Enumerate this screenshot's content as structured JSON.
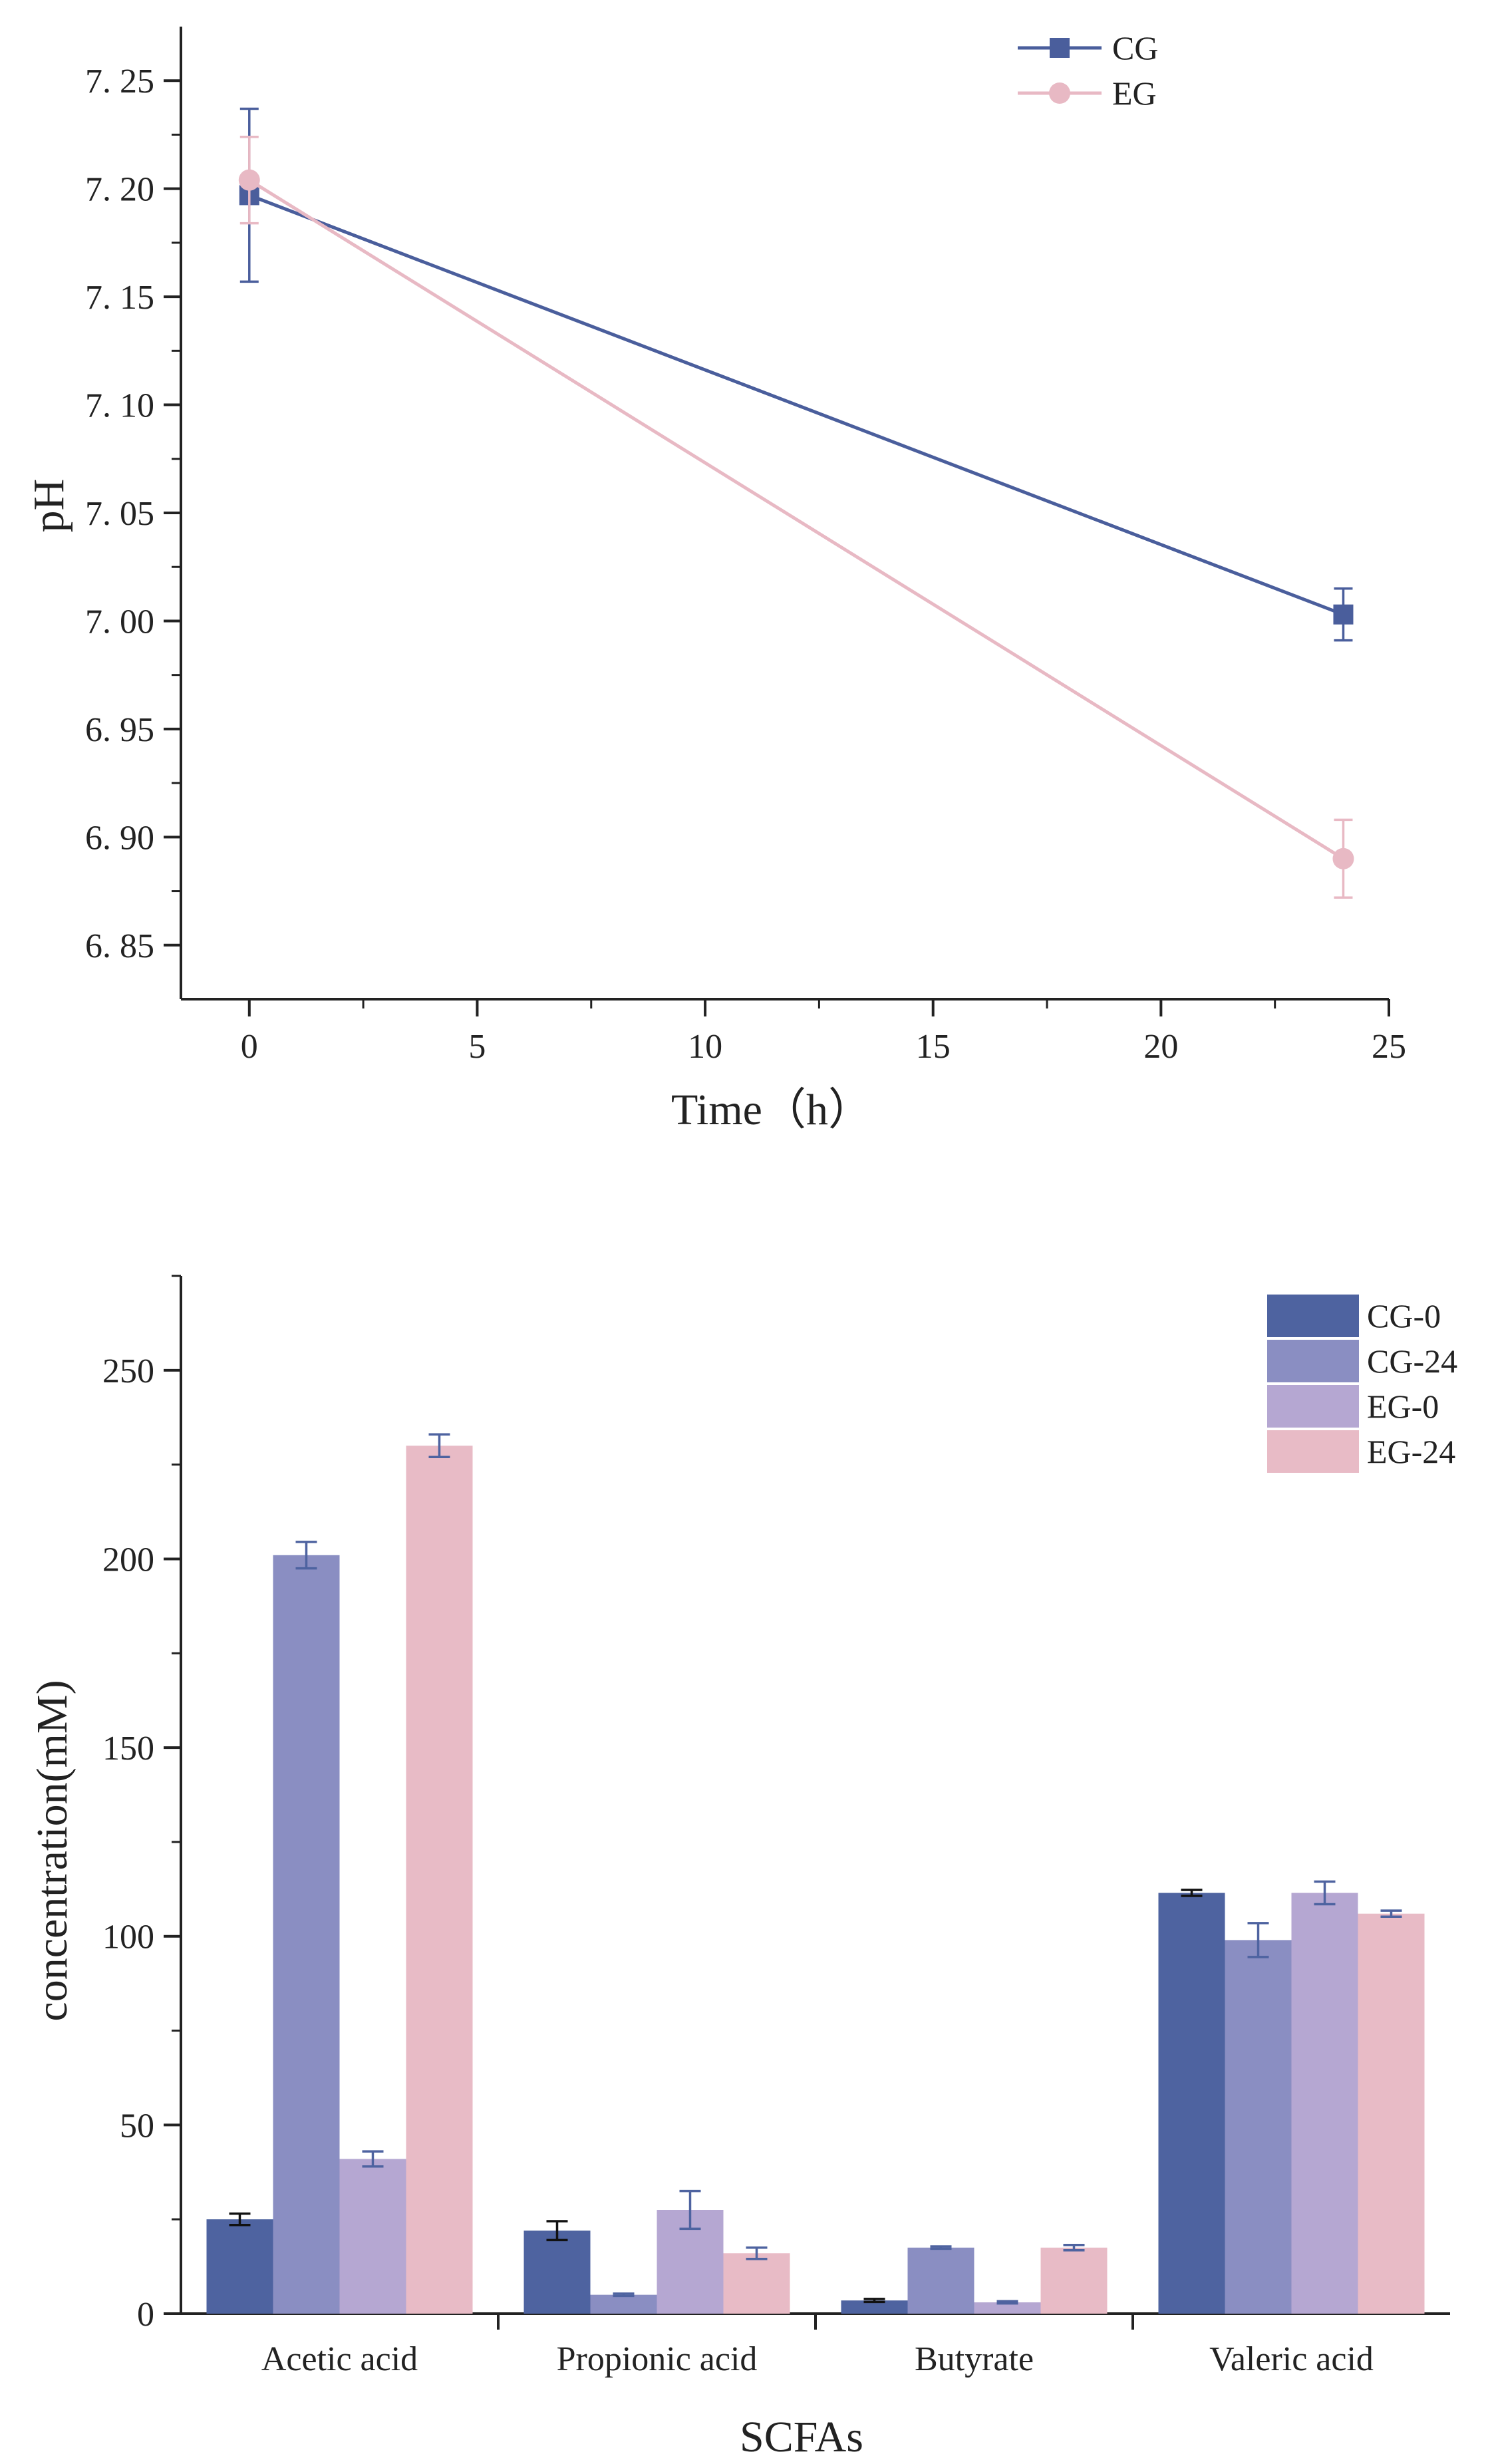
{
  "chart_data": [
    {
      "type": "line",
      "title": "",
      "xlabel": "Time（h）",
      "ylabel": "pH",
      "xlim": [
        -1.5,
        25
      ],
      "ylim": [
        6.825,
        7.275
      ],
      "xticks": [
        0,
        5,
        10,
        15,
        20,
        25
      ],
      "xtick_labels": [
        "0",
        "5",
        "10",
        "15",
        "20",
        "25"
      ],
      "yticks": [
        6.85,
        6.9,
        6.95,
        7.0,
        7.05,
        7.1,
        7.15,
        7.2,
        7.25
      ],
      "ytick_labels": [
        "6. 85",
        "6. 90",
        "6. 95",
        "7. 00",
        "7. 05",
        "7. 10",
        "7. 15",
        "7. 20",
        "7. 25"
      ],
      "grid": false,
      "legend": "top-right",
      "series": [
        {
          "name": "CG",
          "color": "#4A5E9C",
          "marker": "square",
          "x": [
            0,
            24
          ],
          "y": [
            7.197,
            7.003
          ],
          "err": [
            0.04,
            0.012
          ]
        },
        {
          "name": "EG",
          "color": "#E8B9C4",
          "marker": "circle",
          "x": [
            0,
            24
          ],
          "y": [
            7.204,
            6.89
          ],
          "err": [
            0.02,
            0.018
          ]
        }
      ]
    },
    {
      "type": "bar",
      "title": "",
      "xlabel": "SCFAs",
      "ylabel": "concentration(mM)",
      "ylim": [
        0,
        275
      ],
      "yticks": [
        0,
        50,
        100,
        150,
        200,
        250
      ],
      "ytick_labels": [
        "0",
        "50",
        "100",
        "150",
        "200",
        "250"
      ],
      "grid": false,
      "legend": "top-right",
      "categories": [
        "Acetic acid",
        "Propionic acid",
        "Butyrate",
        "Valeric acid"
      ],
      "series": [
        {
          "name": "CG-0",
          "color": "#4E63A0",
          "errcolor": "#111111",
          "values": [
            25,
            22,
            3.5,
            111.5
          ],
          "err": [
            1.5,
            2.5,
            0.4,
            0.8
          ]
        },
        {
          "name": "CG-24",
          "color": "#8A8EC2",
          "errcolor": "#4E63A0",
          "values": [
            201,
            5,
            17.5,
            99
          ],
          "err": [
            3.5,
            0.3,
            0.3,
            4.5
          ]
        },
        {
          "name": "EG-0",
          "color": "#B5A7D2",
          "errcolor": "#4E63A0",
          "values": [
            41,
            27.5,
            3,
            111.5
          ],
          "err": [
            2,
            5,
            0.3,
            3
          ]
        },
        {
          "name": "EG-24",
          "color": "#E8BBC6",
          "errcolor": "#4E63A0",
          "values": [
            230,
            16,
            17.5,
            106
          ],
          "err": [
            3,
            1.5,
            0.7,
            0.8
          ]
        }
      ]
    }
  ]
}
